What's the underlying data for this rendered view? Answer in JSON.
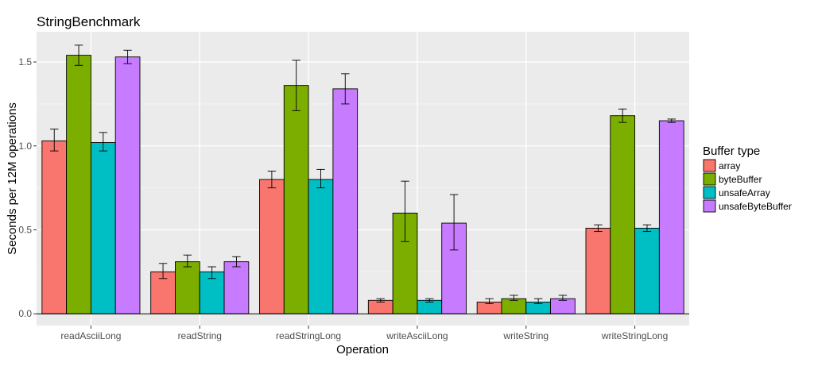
{
  "chart_data": {
    "type": "bar",
    "title": "StringBenchmark",
    "xlabel": "Operation",
    "ylabel": "Seconds per 12M operations",
    "categories": [
      "readAsciiLong",
      "readString",
      "readStringLong",
      "writeAsciiLong",
      "writeString",
      "writeStringLong"
    ],
    "ylim": [
      -0.07,
      1.68
    ],
    "yticks": [
      0.0,
      0.5,
      1.0,
      1.5
    ],
    "ytick_labels": [
      "0.0",
      "0.5",
      "1.0",
      "1.5"
    ],
    "grid": true,
    "legend": {
      "title": "Buffer type",
      "position": "right"
    },
    "series": [
      {
        "name": "array",
        "color": "#F8766D",
        "values": [
          1.03,
          0.25,
          0.8,
          0.08,
          0.07,
          0.51
        ],
        "err_low": [
          0.97,
          0.21,
          0.75,
          0.07,
          0.06,
          0.49
        ],
        "err_high": [
          1.1,
          0.3,
          0.85,
          0.09,
          0.09,
          0.53
        ]
      },
      {
        "name": "byteBuffer",
        "color": "#7CAE00",
        "values": [
          1.54,
          0.31,
          1.36,
          0.6,
          0.09,
          1.18
        ],
        "err_low": [
          1.48,
          0.28,
          1.21,
          0.43,
          0.08,
          1.14
        ],
        "err_high": [
          1.6,
          0.35,
          1.51,
          0.79,
          0.11,
          1.22
        ]
      },
      {
        "name": "unsafeArray",
        "color": "#00BFC4",
        "values": [
          1.02,
          0.25,
          0.8,
          0.08,
          0.07,
          0.51
        ],
        "err_low": [
          0.97,
          0.21,
          0.75,
          0.07,
          0.06,
          0.49
        ],
        "err_high": [
          1.08,
          0.28,
          0.86,
          0.09,
          0.09,
          0.53
        ]
      },
      {
        "name": "unsafeByteBuffer",
        "color": "#C77CFF",
        "values": [
          1.53,
          0.31,
          1.34,
          0.54,
          0.09,
          1.15
        ],
        "err_low": [
          1.49,
          0.28,
          1.25,
          0.38,
          0.08,
          1.14
        ],
        "err_high": [
          1.57,
          0.34,
          1.43,
          0.71,
          0.11,
          1.16
        ]
      }
    ]
  }
}
